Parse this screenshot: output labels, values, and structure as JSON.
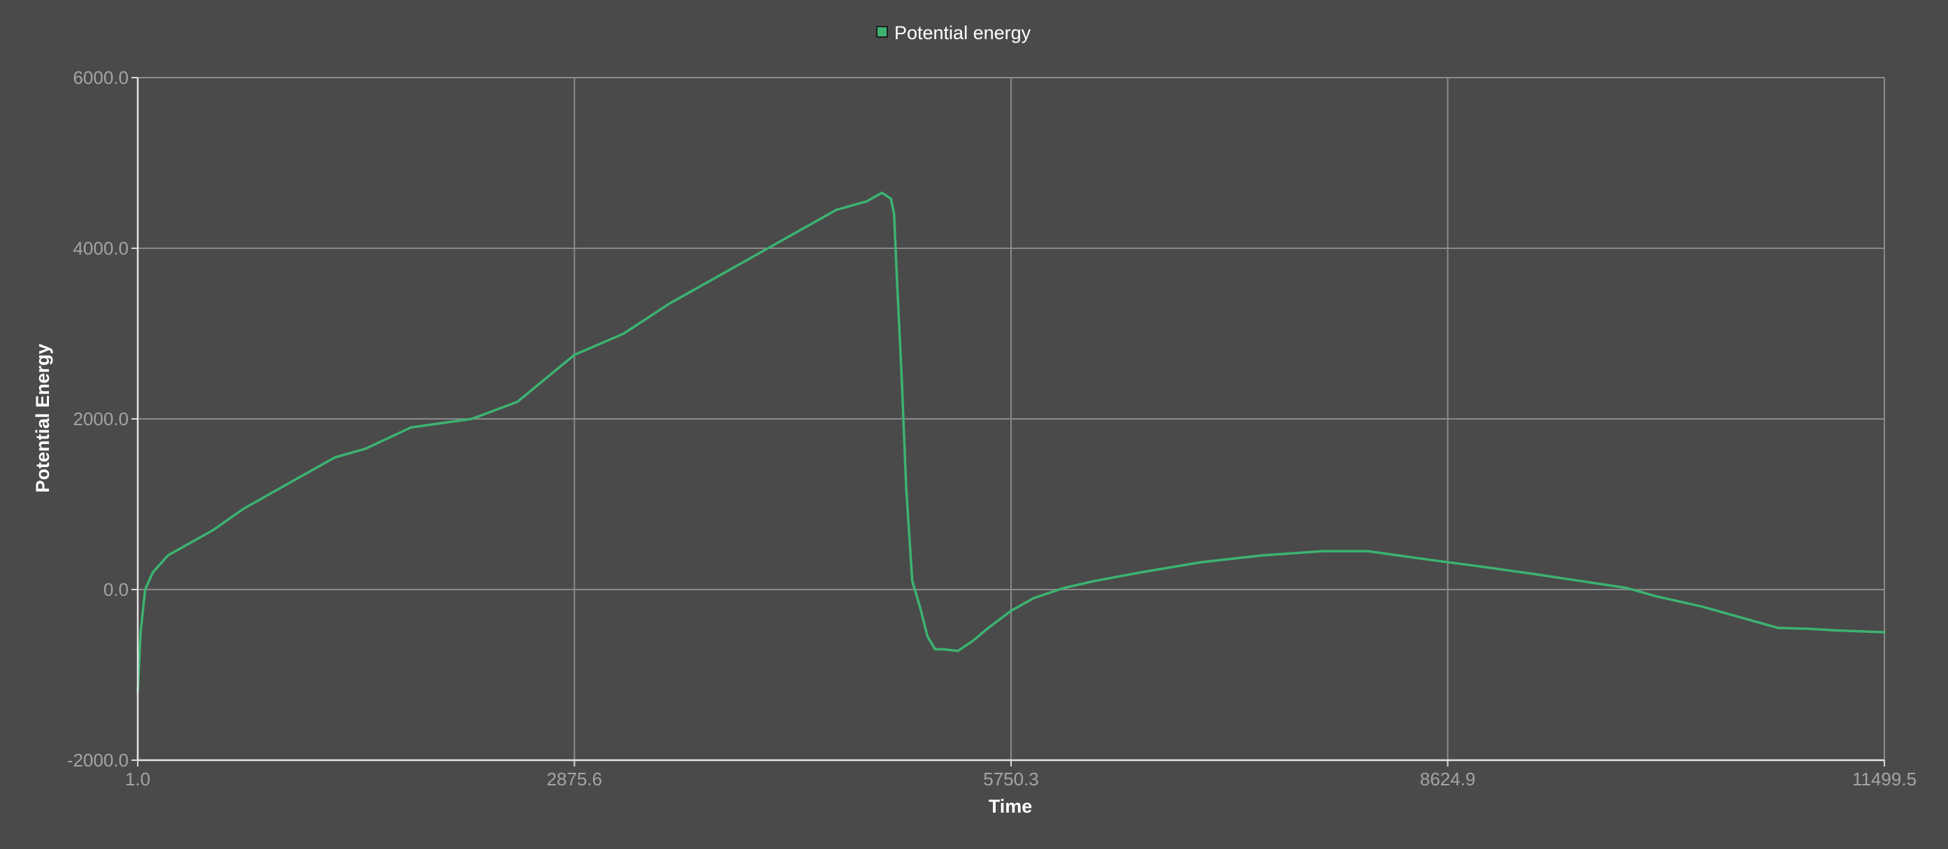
{
  "chart_data": {
    "type": "line",
    "xlabel": "Time",
    "ylabel": "Potential Energy",
    "x_ticks": [
      "1.0",
      "2875.6",
      "5750.3",
      "8624.9",
      "11499.5"
    ],
    "y_ticks": [
      "-2000.0",
      "0.0",
      "2000.0",
      "4000.0",
      "6000.0"
    ],
    "xlim": [
      1.0,
      11499.5
    ],
    "ylim": [
      -2000,
      6000
    ],
    "grid": true,
    "legend_position": "top-center",
    "series": [
      {
        "name": "Potential energy",
        "color": "#3cb371",
        "x": [
          1,
          20,
          50,
          100,
          200,
          300,
          500,
          700,
          1000,
          1300,
          1500,
          1800,
          2200,
          2500,
          2875,
          3200,
          3500,
          3800,
          4100,
          4400,
          4600,
          4800,
          4900,
          4960,
          4980,
          5000,
          5030,
          5060,
          5100,
          5150,
          5200,
          5250,
          5300,
          5400,
          5500,
          5600,
          5750,
          5900,
          6100,
          6300,
          6600,
          7000,
          7400,
          7800,
          8100,
          8500,
          8800,
          9200,
          9500,
          9800,
          10000,
          10300,
          10600,
          10800,
          11000,
          11200,
          11499.5
        ],
        "y": [
          -1200,
          -500,
          0,
          200,
          400,
          500,
          700,
          950,
          1250,
          1550,
          1650,
          1900,
          2000,
          2200,
          2750,
          3000,
          3350,
          3650,
          3950,
          4250,
          4450,
          4550,
          4650,
          4580,
          4400,
          3600,
          2500,
          1200,
          100,
          -200,
          -550,
          -700,
          -700,
          -720,
          -600,
          -450,
          -250,
          -100,
          20,
          100,
          200,
          320,
          400,
          450,
          450,
          350,
          280,
          180,
          100,
          20,
          -80,
          -200,
          -350,
          -450,
          -460,
          -480,
          -500
        ]
      }
    ]
  }
}
